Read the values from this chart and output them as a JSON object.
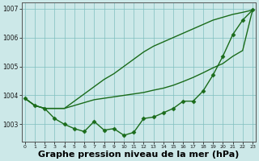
{
  "x": [
    0,
    1,
    2,
    3,
    4,
    5,
    6,
    7,
    8,
    9,
    10,
    11,
    12,
    13,
    14,
    15,
    16,
    17,
    18,
    19,
    20,
    21,
    22,
    23
  ],
  "line_jagged": [
    1003.9,
    1003.65,
    1003.55,
    1003.2,
    1003.0,
    1002.85,
    1002.75,
    1003.1,
    1002.8,
    1002.85,
    1002.62,
    1002.72,
    1003.2,
    1003.25,
    1003.4,
    1003.55,
    1003.8,
    1003.8,
    1004.15,
    1004.7,
    1005.35,
    1006.1,
    1006.6,
    1006.95
  ],
  "line_upper": [
    1003.9,
    1003.65,
    1003.55,
    1003.55,
    1003.55,
    1003.8,
    1004.05,
    1004.3,
    1004.55,
    1004.75,
    1005.0,
    1005.25,
    1005.5,
    1005.7,
    1005.85,
    1006.0,
    1006.15,
    1006.3,
    1006.45,
    1006.6,
    1006.7,
    1006.8,
    1006.87,
    1006.95
  ],
  "line_lower": [
    1003.9,
    1003.65,
    1003.55,
    1003.55,
    1003.55,
    1003.65,
    1003.75,
    1003.85,
    1003.9,
    1003.95,
    1004.0,
    1004.05,
    1004.1,
    1004.18,
    1004.25,
    1004.35,
    1004.48,
    1004.62,
    1004.78,
    1004.95,
    1005.1,
    1005.35,
    1005.55,
    1006.95
  ],
  "bg_color": "#cce8e8",
  "line_color": "#1a6b1a",
  "grid_color": "#7fbfbf",
  "ylim": [
    1002.4,
    1007.2
  ],
  "xlim": [
    -0.3,
    23.3
  ],
  "yticks": [
    1003,
    1004,
    1005,
    1006,
    1007
  ],
  "xticks": [
    0,
    1,
    2,
    3,
    4,
    5,
    6,
    7,
    8,
    9,
    10,
    11,
    12,
    13,
    14,
    15,
    16,
    17,
    18,
    19,
    20,
    21,
    22,
    23
  ],
  "xlabel": "Graphe pression niveau de la mer (hPa)",
  "xlabel_fontsize": 8,
  "marker": "D",
  "marker_size": 2.5,
  "linewidth": 1.0
}
